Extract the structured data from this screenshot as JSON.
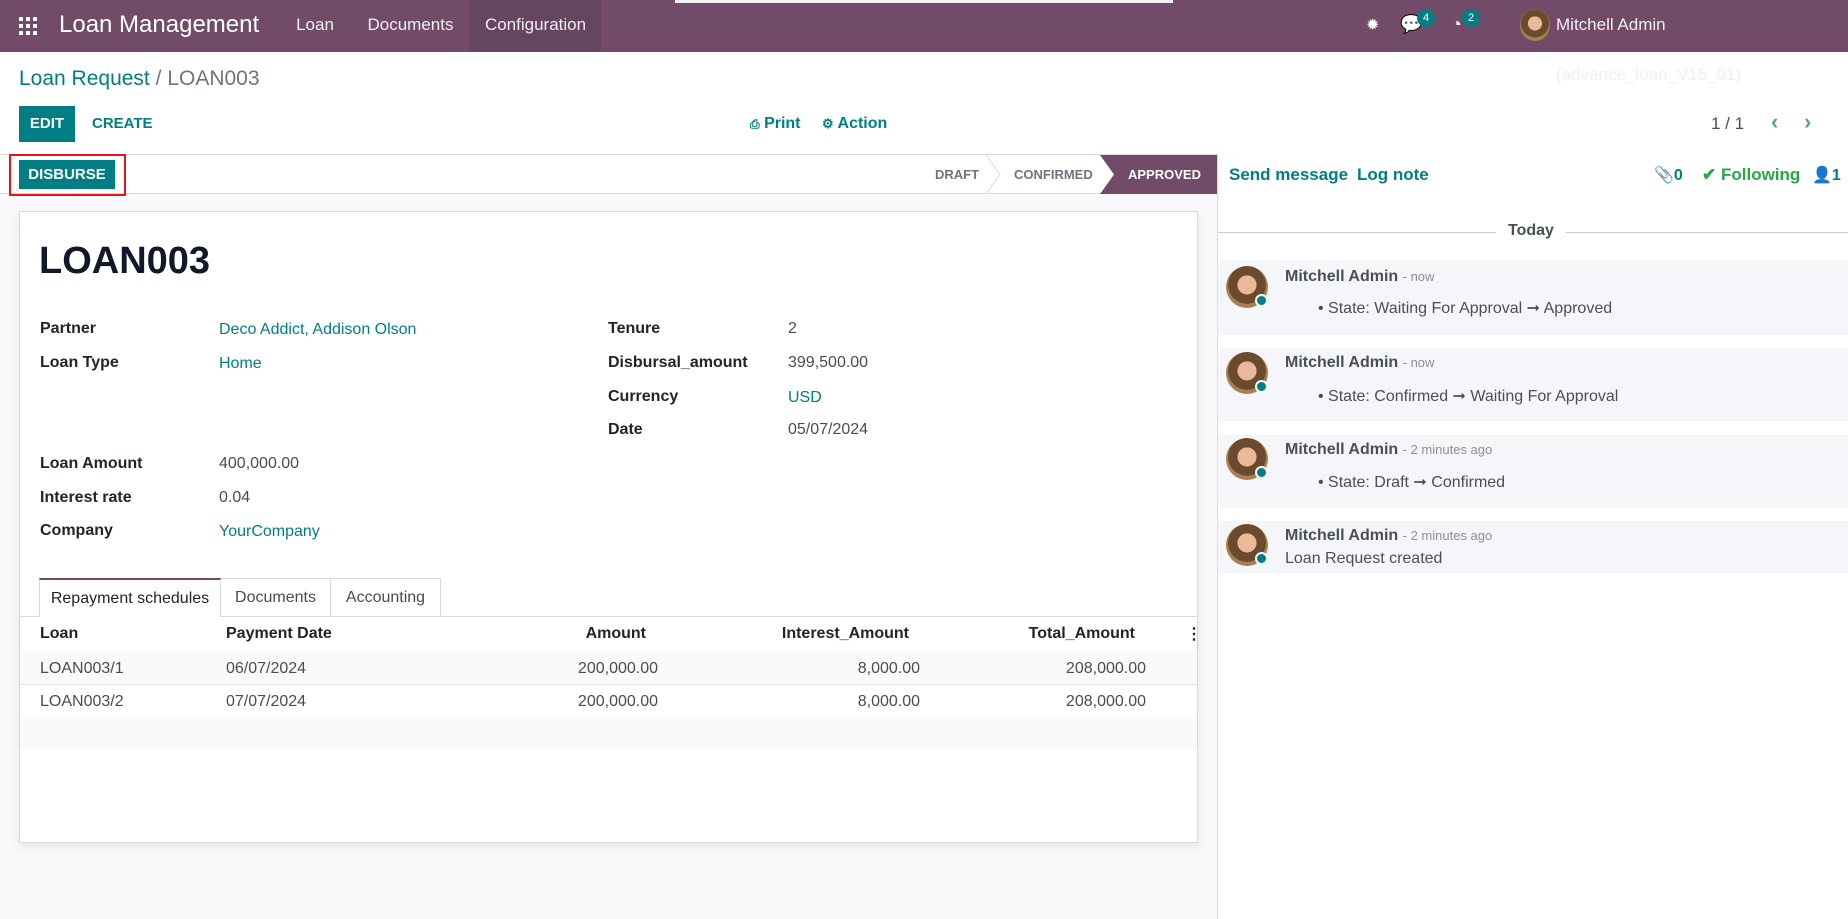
{
  "navbar": {
    "app_title": "Loan Management",
    "menu": [
      "Loan",
      "Documents",
      "Configuration"
    ],
    "messages_count": "4",
    "activities_count": "2",
    "user": "Mitchell Admin (advance_loan_V15_01)",
    "color": "#714B67"
  },
  "breadcrumb": {
    "parent": "Loan Request",
    "separator": "/",
    "current": "LOAN003"
  },
  "control": {
    "edit": "EDIT",
    "create": "CREATE",
    "print": "Print",
    "action": "Action",
    "pager": "1 / 1"
  },
  "statusbar": {
    "disburse": "DISBURSE",
    "stages": [
      "DRAFT",
      "CONFIRMED",
      "APPROVED"
    ],
    "active_stage": "APPROVED"
  },
  "form": {
    "name": "LOAN003",
    "left_fields": [
      {
        "label": "Partner",
        "value": "Deco Addict, Addison Olson",
        "link": true
      },
      {
        "label": "Loan Type",
        "value": "Home",
        "link": true
      },
      {
        "label": "Loan Amount",
        "value": "400,000.00",
        "link": false
      },
      {
        "label": "Interest rate",
        "value": "0.04",
        "link": false
      },
      {
        "label": "Company",
        "value": "YourCompany",
        "link": true
      }
    ],
    "right_fields": [
      {
        "label": "Tenure",
        "value": "2",
        "link": false
      },
      {
        "label": "Disbursal_amount",
        "value": "399,500.00",
        "link": false
      },
      {
        "label": "Currency",
        "value": "USD",
        "link": true
      },
      {
        "label": "Date",
        "value": "05/07/2024",
        "link": false
      }
    ],
    "tabs": [
      "Repayment schedules",
      "Documents",
      "Accounting"
    ],
    "active_tab": "Repayment schedules",
    "table": {
      "columns": [
        "Loan",
        "Payment Date",
        "Amount",
        "Interest_Amount",
        "Total_Amount"
      ],
      "rows": [
        [
          "LOAN003/1",
          "06/07/2024",
          "200,000.00",
          "8,000.00",
          "208,000.00"
        ],
        [
          "LOAN003/2",
          "07/07/2024",
          "200,000.00",
          "8,000.00",
          "208,000.00"
        ]
      ]
    }
  },
  "chatter": {
    "send_message": "Send message",
    "log_note": "Log note",
    "attachments": "0",
    "following": "Following",
    "followers": "1",
    "date_separator": "Today",
    "messages": [
      {
        "author": "Mitchell Admin",
        "time": "- now",
        "body": "State: Waiting For Approval ➞ Approved",
        "bullet": true
      },
      {
        "author": "Mitchell Admin",
        "time": "- now",
        "body": "State: Confirmed ➞ Waiting For Approval",
        "bullet": true
      },
      {
        "author": "Mitchell Admin",
        "time": "- 2 minutes ago",
        "body": "State: Draft ➞ Confirmed",
        "bullet": true
      },
      {
        "author": "Mitchell Admin",
        "time": "- 2 minutes ago",
        "body": "Loan Request created",
        "bullet": false
      }
    ]
  }
}
